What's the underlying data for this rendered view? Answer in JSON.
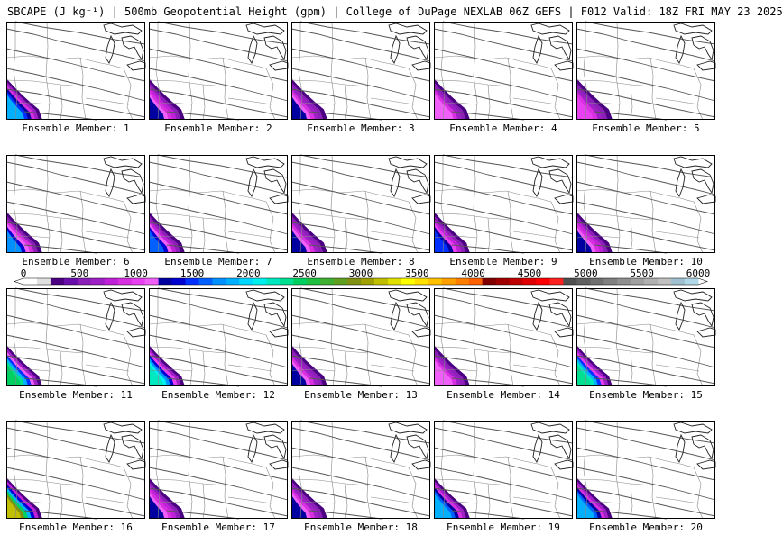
{
  "header": {
    "title": "SBCAPE (J kg⁻¹) | 500mb Geopotential Height (gpm) | College of DuPage NEXLAB 06Z GEFS | F012 Valid: 18Z FRI MAY 23 2025"
  },
  "colorbar": {
    "tick_labels": [
      "0",
      "500",
      "1000",
      "1500",
      "2000",
      "2500",
      "3000",
      "3500",
      "4000",
      "4500",
      "5000",
      "5500",
      "6000"
    ],
    "colors": [
      "#ffffff",
      "#e0e0e0",
      "#4b0082",
      "#6a0dad",
      "#8b1fb8",
      "#a020c8",
      "#c020d8",
      "#d830e0",
      "#e840f0",
      "#f060f8",
      "#0000a0",
      "#0000d0",
      "#0030ff",
      "#0060ff",
      "#0090ff",
      "#00b0ff",
      "#00d8ff",
      "#00f0f0",
      "#00e8c0",
      "#00e090",
      "#00d060",
      "#20c040",
      "#40b030",
      "#60a020",
      "#809010",
      "#a0a000",
      "#c0c000",
      "#e0e000",
      "#ffff00",
      "#ffe000",
      "#ffc000",
      "#ffa000",
      "#ff8000",
      "#ff6000",
      "#800000",
      "#a00000",
      "#c00000",
      "#e00000",
      "#ff0000",
      "#ff2020",
      "#505050",
      "#606060",
      "#707070",
      "#808080",
      "#909090",
      "#a0a0a0",
      "#b0b0b0",
      "#c0c0c0",
      "#a0c0d0",
      "#b0d8e8"
    ]
  },
  "panels": [
    {
      "label": "Ensemble Member: 1",
      "cape_peak": 1800
    },
    {
      "label": "Ensemble Member: 2",
      "cape_peak": 1300
    },
    {
      "label": "Ensemble Member: 3",
      "cape_peak": 1200
    },
    {
      "label": "Ensemble Member: 4",
      "cape_peak": 1100
    },
    {
      "label": "Ensemble Member: 5",
      "cape_peak": 1000
    },
    {
      "label": "Ensemble Member: 6",
      "cape_peak": 1700
    },
    {
      "label": "Ensemble Member: 7",
      "cape_peak": 1600
    },
    {
      "label": "Ensemble Member: 8",
      "cape_peak": 1200
    },
    {
      "label": "Ensemble Member: 9",
      "cape_peak": 1500
    },
    {
      "label": "Ensemble Member: 10",
      "cape_peak": 1300
    },
    {
      "label": "Ensemble Member: 11",
      "cape_peak": 2400
    },
    {
      "label": "Ensemble Member: 12",
      "cape_peak": 2200
    },
    {
      "label": "Ensemble Member: 13",
      "cape_peak": 1200
    },
    {
      "label": "Ensemble Member: 14",
      "cape_peak": 1100
    },
    {
      "label": "Ensemble Member: 15",
      "cape_peak": 2300
    },
    {
      "label": "Ensemble Member: 16",
      "cape_peak": 3200
    },
    {
      "label": "Ensemble Member: 17",
      "cape_peak": 1300
    },
    {
      "label": "Ensemble Member: 18",
      "cape_peak": 1200
    },
    {
      "label": "Ensemble Member: 19",
      "cape_peak": 1900
    },
    {
      "label": "Ensemble Member: 20",
      "cape_peak": 1900
    }
  ]
}
